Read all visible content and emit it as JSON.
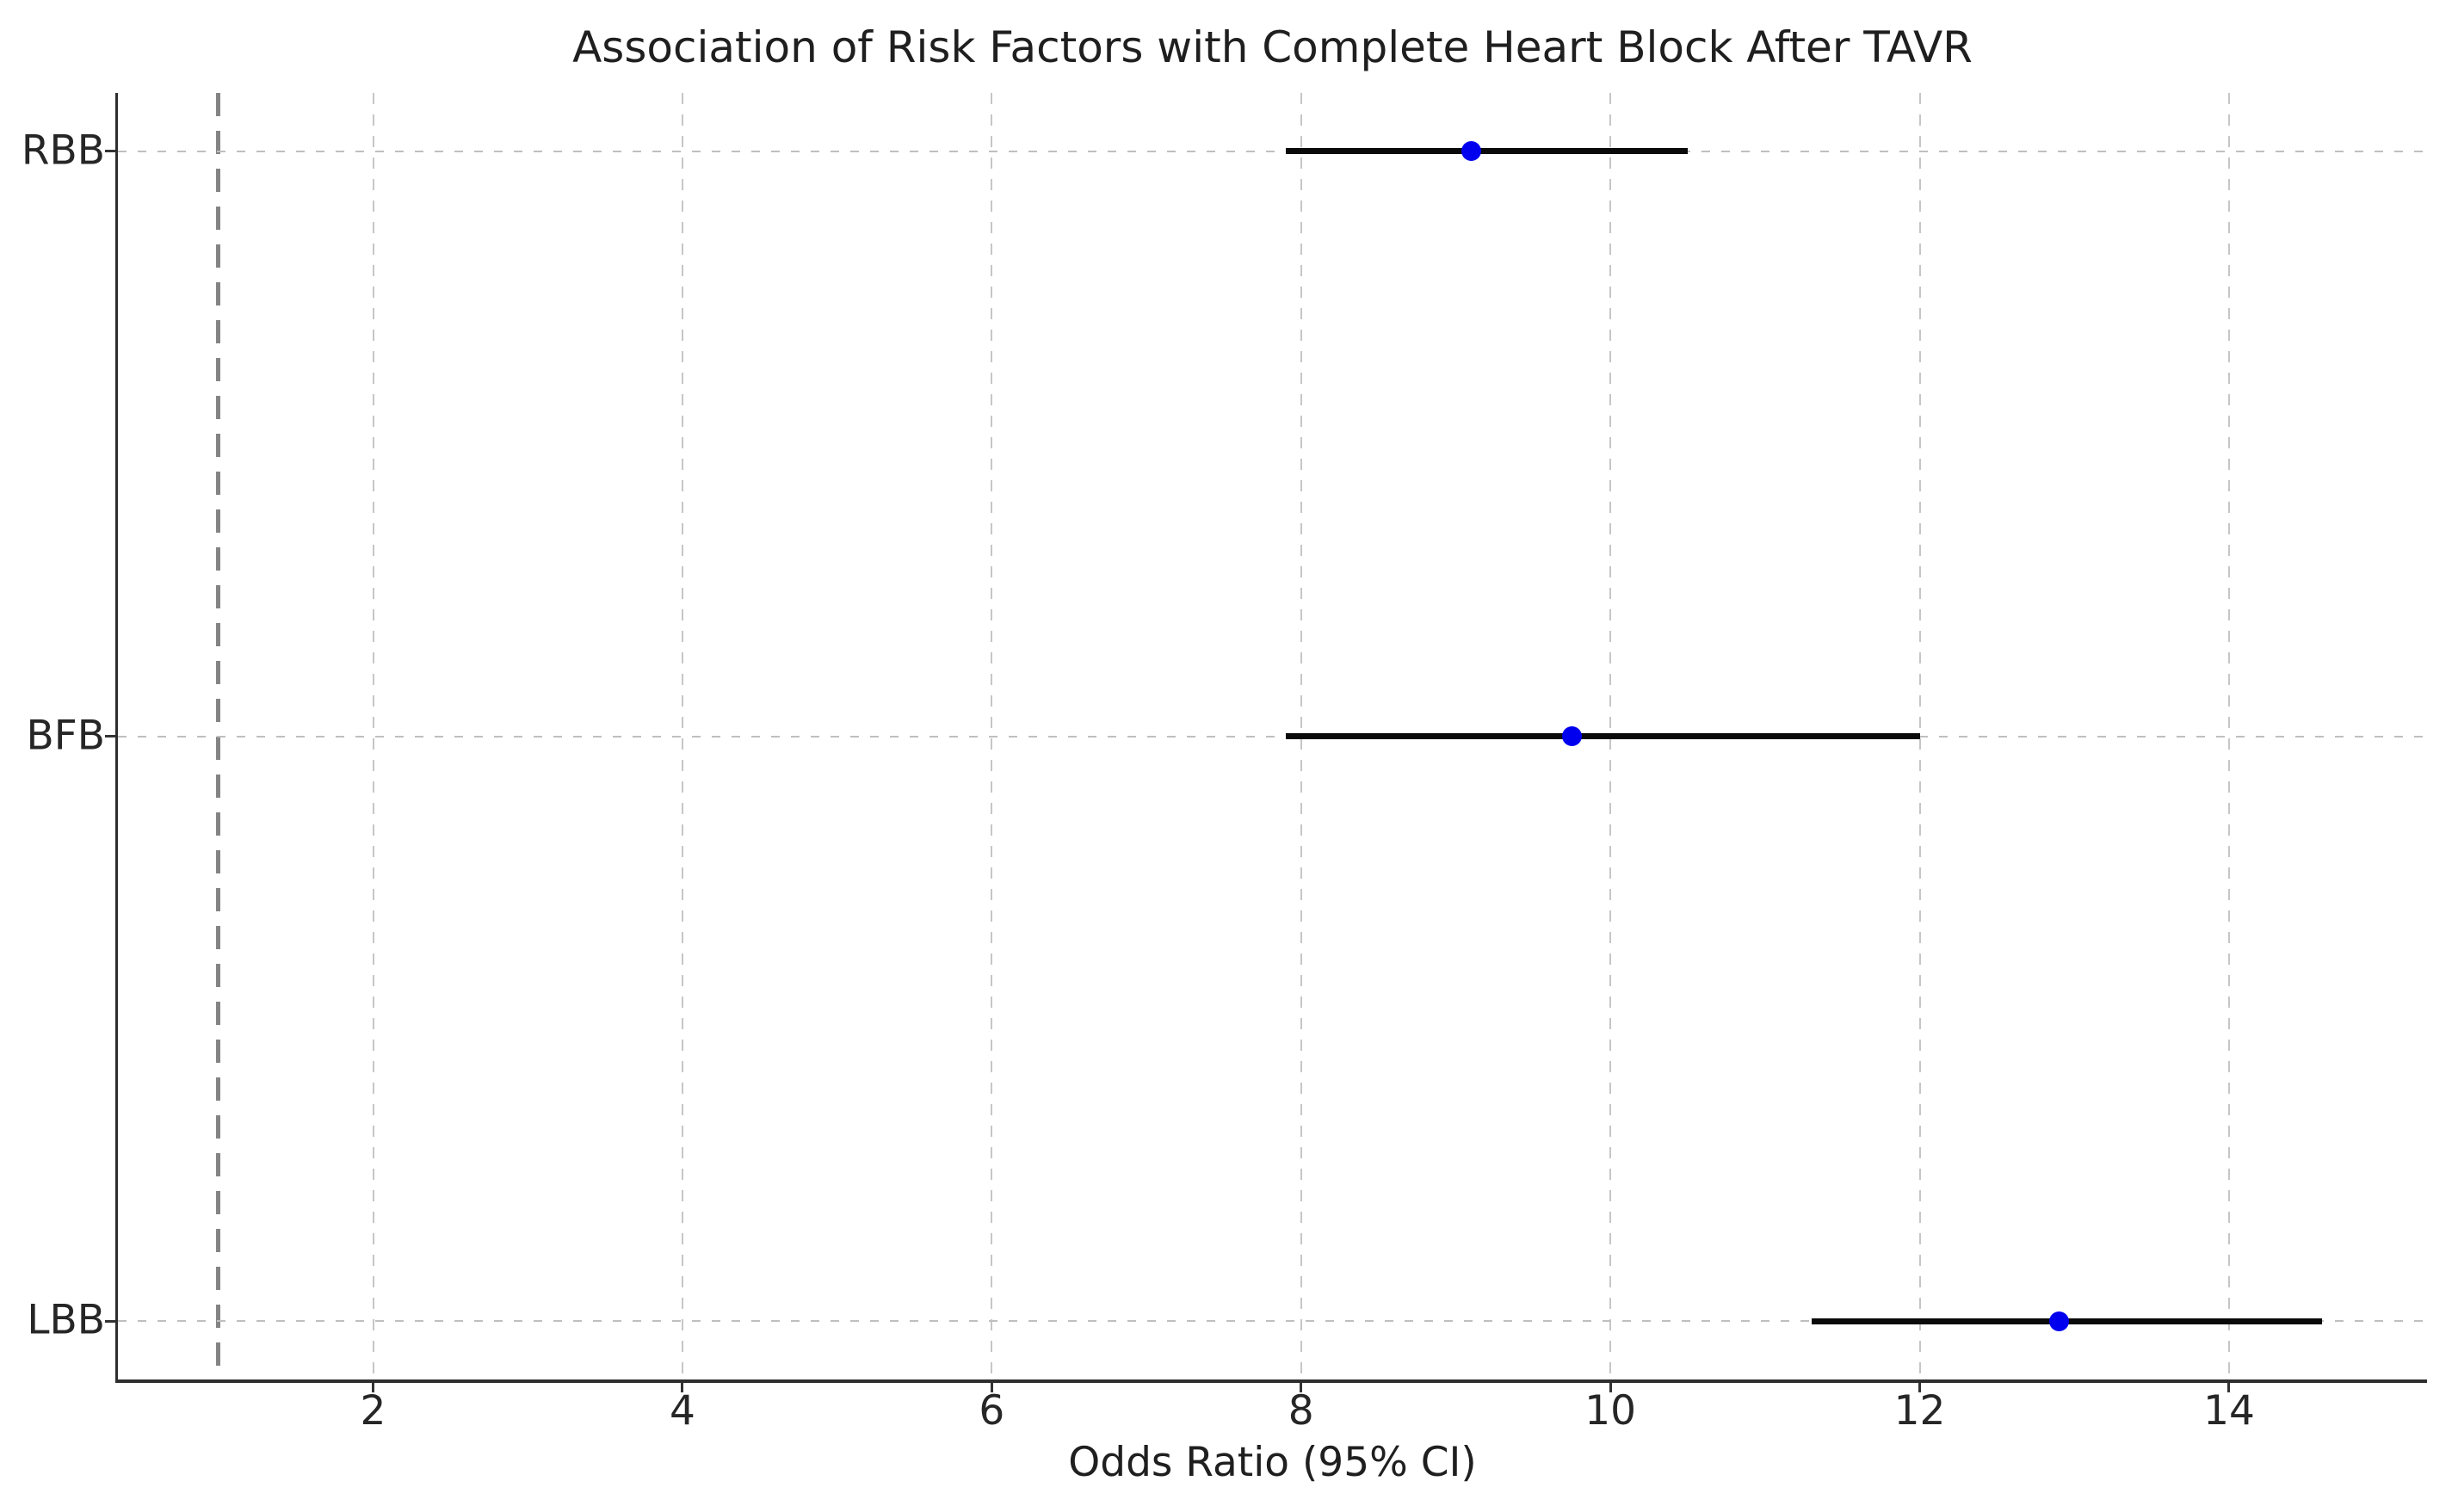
{
  "chart_data": {
    "type": "scatter",
    "subtype": "forest-plot",
    "title": "Association of Risk Factors with Complete Heart Block After TAVR",
    "xlabel": "Odds Ratio (95% CI)",
    "categories": [
      "RBB",
      "BFB",
      "LBB"
    ],
    "points": [
      {
        "category": "RBB",
        "odds_ratio": 9.1,
        "ci_low": 7.9,
        "ci_high": 10.5,
        "y": 3
      },
      {
        "category": "BFB",
        "odds_ratio": 9.75,
        "ci_low": 7.9,
        "ci_high": 12.0,
        "y": 2
      },
      {
        "category": "LBB",
        "odds_ratio": 12.9,
        "ci_low": 11.3,
        "ci_high": 14.6,
        "y": 1
      }
    ],
    "xticks": [
      "2",
      "4",
      "6",
      "8",
      "10",
      "12",
      "14"
    ],
    "xtick_values": [
      2,
      4,
      6,
      8,
      10,
      12,
      14
    ],
    "xlim": [
      0.35,
      15.28
    ],
    "ylim": [
      0.9,
      3.1
    ],
    "reference_line_x": 1.0,
    "grid": true,
    "legend": false,
    "colors": {
      "marker": "#0000ee",
      "ci_line": "#0a0a0a",
      "reference_line": "#848484",
      "grid_line": "#c4c4c4",
      "spine": "#2e2e2e",
      "text": "#1f1f1f"
    }
  }
}
